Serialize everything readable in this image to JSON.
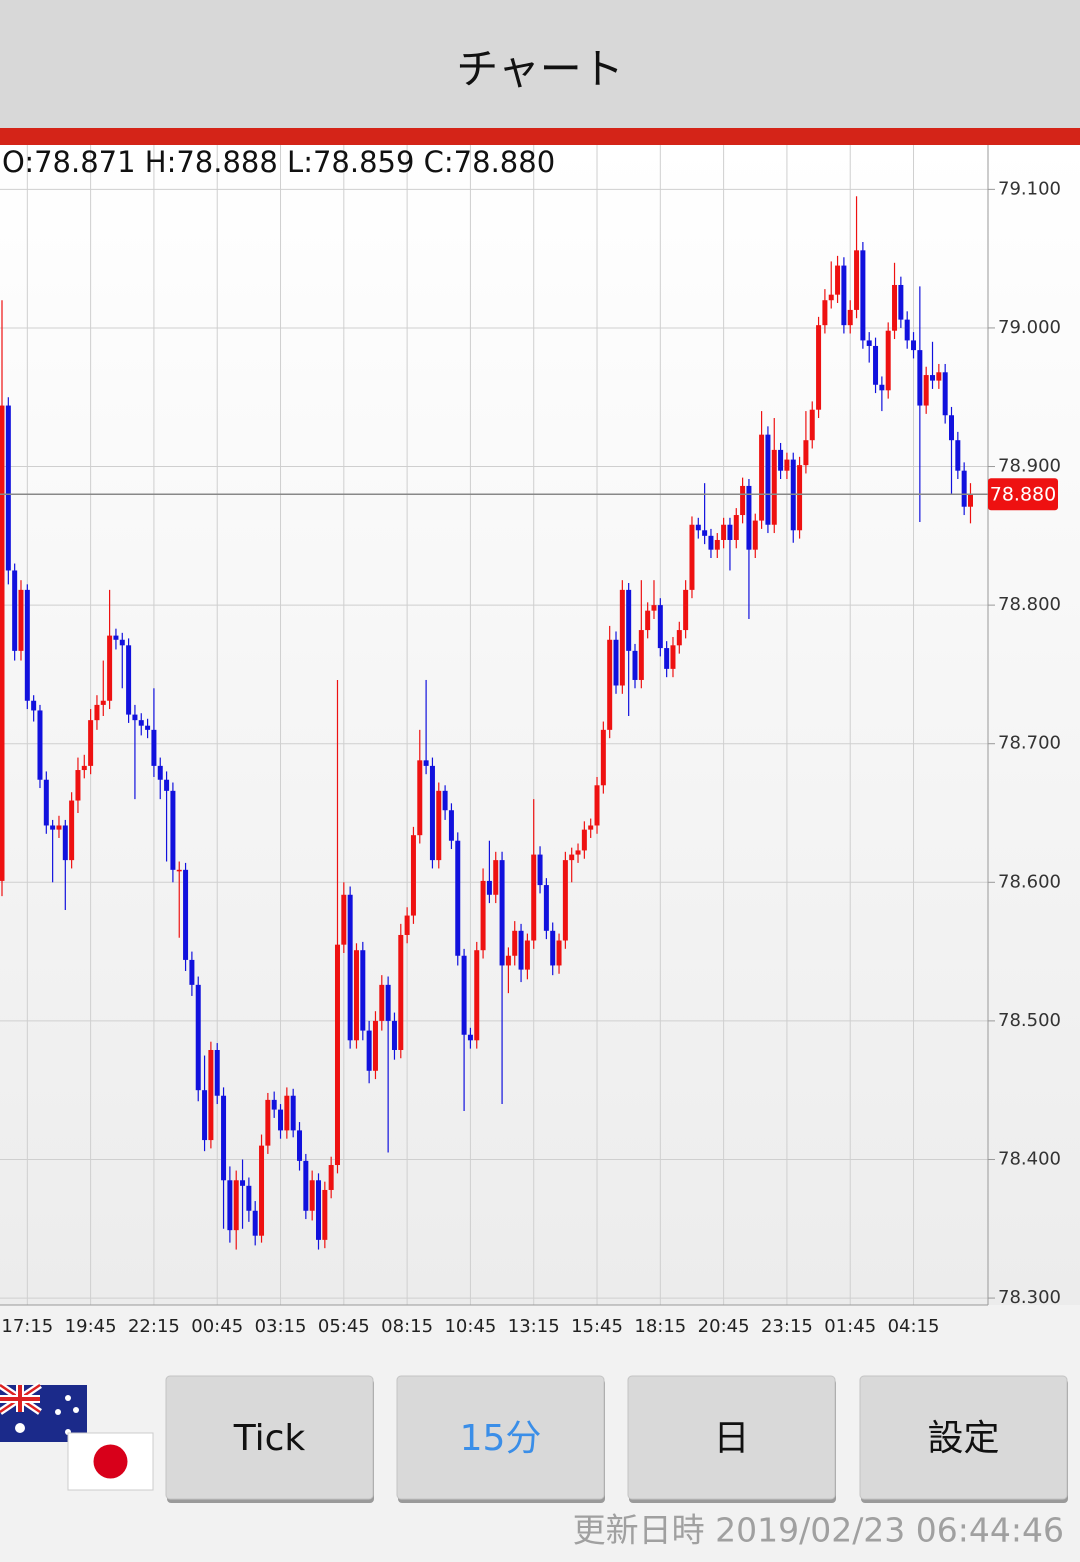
{
  "header": {
    "title": "チャート"
  },
  "chart_data": {
    "type": "candlestick",
    "ohlc_text": "O:78.871 H:78.888 L:78.859 C:78.880",
    "categories": [
      null,
      null,
      null,
      null,
      "17:15",
      null,
      null,
      null,
      null,
      null,
      null,
      null,
      null,
      null,
      "19:45",
      null,
      null,
      null,
      null,
      null,
      null,
      null,
      null,
      null,
      "22:15",
      null,
      null,
      null,
      null,
      null,
      null,
      null,
      null,
      null,
      "00:45",
      null,
      null,
      null,
      null,
      null,
      null,
      null,
      null,
      null,
      "03:15",
      null,
      null,
      null,
      null,
      null,
      null,
      null,
      null,
      null,
      "05:45",
      null,
      null,
      null,
      null,
      null,
      null,
      null,
      null,
      null,
      "08:15",
      null,
      null,
      null,
      null,
      null,
      null,
      null,
      null,
      null,
      "10:45",
      null,
      null,
      null,
      null,
      null,
      null,
      null,
      null,
      null,
      "13:15",
      null,
      null,
      null,
      null,
      null,
      null,
      null,
      null,
      null,
      "15:45",
      null,
      null,
      null,
      null,
      null,
      null,
      null,
      null,
      null,
      "18:15",
      null,
      null,
      null,
      null,
      null,
      null,
      null,
      null,
      null,
      "20:45",
      null,
      null,
      null,
      null,
      null,
      null,
      null,
      null,
      null,
      "23:15",
      null,
      null,
      null,
      null,
      null,
      null,
      null,
      null,
      null,
      "01:45",
      null,
      null,
      null,
      null,
      null,
      null,
      null,
      null,
      null,
      "04:15",
      null,
      null,
      null,
      null,
      null,
      null,
      null,
      null,
      null
    ],
    "open": [
      78.601,
      78.944,
      78.825,
      78.767,
      78.811,
      78.731,
      78.724,
      78.674,
      78.641,
      78.638,
      78.641,
      78.616,
      78.659,
      78.681,
      78.684,
      78.717,
      78.728,
      78.731,
      78.778,
      78.775,
      78.771,
      78.721,
      78.717,
      78.713,
      78.71,
      78.684,
      78.674,
      78.666,
      78.609,
      78.609,
      78.544,
      78.526,
      78.45,
      78.414,
      78.479,
      78.446,
      78.385,
      78.349,
      78.385,
      78.381,
      78.363,
      78.345,
      78.41,
      78.443,
      78.436,
      78.421,
      78.446,
      78.421,
      78.399,
      78.363,
      78.385,
      78.342,
      78.378,
      78.396,
      78.555,
      78.591,
      78.486,
      78.551,
      78.493,
      78.464,
      78.5,
      78.526,
      78.5,
      78.479,
      78.562,
      78.576,
      78.634,
      78.688,
      78.684,
      78.616,
      78.666,
      78.652,
      78.63,
      78.547,
      78.49,
      78.486,
      78.551,
      78.601,
      78.591,
      78.616,
      78.54,
      78.547,
      78.565,
      78.537,
      78.558,
      78.62,
      78.598,
      78.565,
      78.54,
      78.558,
      78.616,
      78.62,
      78.623,
      78.638,
      78.641,
      78.67,
      78.71,
      78.775,
      78.742,
      78.811,
      78.767,
      78.746,
      78.782,
      78.796,
      78.8,
      78.769,
      78.754,
      78.771,
      78.782,
      78.811,
      78.858,
      78.854,
      78.85,
      78.84,
      78.847,
      78.858,
      78.847,
      78.865,
      78.886,
      78.84,
      78.861,
      78.923,
      78.858,
      78.912,
      78.897,
      78.905,
      78.854,
      78.901,
      78.919,
      78.941,
      79.002,
      79.02,
      79.024,
      79.045,
      79.002,
      79.013,
      79.056,
      78.991,
      78.987,
      78.959,
      78.955,
      78.998,
      79.031,
      79.006,
      78.991,
      78.984,
      78.944,
      78.966,
      78.962,
      78.968,
      78.937,
      78.919,
      78.897,
      78.871
    ],
    "high": [
      79.02,
      78.95,
      78.83,
      78.818,
      78.815,
      78.735,
      78.728,
      78.68,
      78.645,
      78.648,
      78.645,
      78.665,
      78.69,
      78.692,
      78.725,
      78.735,
      78.76,
      78.811,
      78.783,
      78.78,
      78.776,
      78.728,
      78.722,
      78.718,
      78.74,
      78.69,
      78.68,
      78.672,
      78.615,
      78.614,
      78.55,
      78.532,
      78.475,
      78.485,
      78.484,
      78.452,
      78.395,
      78.392,
      78.4,
      78.387,
      78.37,
      78.418,
      78.448,
      78.449,
      78.44,
      78.452,
      78.451,
      78.427,
      78.404,
      78.392,
      78.39,
      78.384,
      78.402,
      78.746,
      78.6,
      78.597,
      78.556,
      78.557,
      78.5,
      78.507,
      78.533,
      78.532,
      78.506,
      78.57,
      78.582,
      78.64,
      78.71,
      78.746,
      78.69,
      78.672,
      78.67,
      78.657,
      78.636,
      78.552,
      78.495,
      78.557,
      78.61,
      78.63,
      78.622,
      78.622,
      78.553,
      78.572,
      78.57,
      78.563,
      78.66,
      78.626,
      78.603,
      78.571,
      78.563,
      78.622,
      78.625,
      78.628,
      78.644,
      78.646,
      78.676,
      78.716,
      78.785,
      78.781,
      78.818,
      78.816,
      78.772,
      78.818,
      78.802,
      78.818,
      78.805,
      78.774,
      78.777,
      78.788,
      78.818,
      78.864,
      78.863,
      78.888,
      78.855,
      78.852,
      78.863,
      78.863,
      78.87,
      78.892,
      78.891,
      78.866,
      78.94,
      78.929,
      78.935,
      78.917,
      78.91,
      78.91,
      78.907,
      78.94,
      78.947,
      79.008,
      79.028,
      79.048,
      79.052,
      79.051,
      79.02,
      79.095,
      79.062,
      78.997,
      78.993,
      78.965,
      79.004,
      79.047,
      79.037,
      79.012,
      78.997,
      79.03,
      78.972,
      78.99,
      78.974,
      78.974,
      78.943,
      78.925,
      78.903,
      78.888
    ],
    "low": [
      78.59,
      78.815,
      78.76,
      78.76,
      78.725,
      78.716,
      78.668,
      78.635,
      78.6,
      78.632,
      78.58,
      78.61,
      78.65,
      78.675,
      78.678,
      78.71,
      78.72,
      78.725,
      78.768,
      78.74,
      78.715,
      78.66,
      78.706,
      78.704,
      78.676,
      78.66,
      78.615,
      78.6,
      78.56,
      78.536,
      78.518,
      78.442,
      78.406,
      78.408,
      78.44,
      78.35,
      78.34,
      78.335,
      78.35,
      78.355,
      78.338,
      78.34,
      78.404,
      78.43,
      78.415,
      78.415,
      78.416,
      78.392,
      78.357,
      78.356,
      78.335,
      78.336,
      78.372,
      78.39,
      78.549,
      78.48,
      78.48,
      78.486,
      78.455,
      78.458,
      78.493,
      78.405,
      78.472,
      78.473,
      78.556,
      78.57,
      78.628,
      78.678,
      78.61,
      78.61,
      78.645,
      78.624,
      78.54,
      78.435,
      78.48,
      78.48,
      78.545,
      78.585,
      78.585,
      78.44,
      78.52,
      78.54,
      78.528,
      78.53,
      78.552,
      78.592,
      78.559,
      78.533,
      78.534,
      78.552,
      78.6,
      78.614,
      78.617,
      78.632,
      78.635,
      78.664,
      78.704,
      78.736,
      78.736,
      78.72,
      78.74,
      78.74,
      78.776,
      78.79,
      78.763,
      78.748,
      78.748,
      78.765,
      78.776,
      78.805,
      78.848,
      78.844,
      78.834,
      78.834,
      78.841,
      78.825,
      78.841,
      78.859,
      78.79,
      78.834,
      78.855,
      78.852,
      78.852,
      78.891,
      78.891,
      78.845,
      78.848,
      78.895,
      78.913,
      78.935,
      78.996,
      79.014,
      79.018,
      78.996,
      78.996,
      79.007,
      78.985,
      78.975,
      78.953,
      78.94,
      78.949,
      78.992,
      79.0,
      78.985,
      78.978,
      78.86,
      78.938,
      78.956,
      78.956,
      78.931,
      78.88,
      78.891,
      78.865,
      78.859
    ],
    "close": [
      78.944,
      78.825,
      78.767,
      78.811,
      78.731,
      78.724,
      78.674,
      78.641,
      78.638,
      78.641,
      78.616,
      78.659,
      78.681,
      78.684,
      78.717,
      78.728,
      78.731,
      78.778,
      78.775,
      78.771,
      78.721,
      78.717,
      78.713,
      78.71,
      78.684,
      78.674,
      78.666,
      78.609,
      78.609,
      78.544,
      78.526,
      78.45,
      78.414,
      78.479,
      78.446,
      78.385,
      78.349,
      78.385,
      78.381,
      78.363,
      78.345,
      78.41,
      78.443,
      78.436,
      78.421,
      78.446,
      78.421,
      78.399,
      78.363,
      78.385,
      78.342,
      78.378,
      78.396,
      78.555,
      78.591,
      78.486,
      78.551,
      78.493,
      78.464,
      78.5,
      78.526,
      78.5,
      78.479,
      78.562,
      78.576,
      78.634,
      78.688,
      78.684,
      78.616,
      78.666,
      78.652,
      78.63,
      78.547,
      78.49,
      78.486,
      78.551,
      78.601,
      78.591,
      78.616,
      78.54,
      78.547,
      78.565,
      78.537,
      78.558,
      78.62,
      78.598,
      78.565,
      78.54,
      78.558,
      78.616,
      78.62,
      78.623,
      78.638,
      78.641,
      78.67,
      78.71,
      78.775,
      78.742,
      78.811,
      78.767,
      78.746,
      78.782,
      78.796,
      78.8,
      78.769,
      78.754,
      78.771,
      78.782,
      78.811,
      78.858,
      78.854,
      78.85,
      78.84,
      78.847,
      78.858,
      78.847,
      78.865,
      78.886,
      78.84,
      78.861,
      78.923,
      78.858,
      78.912,
      78.897,
      78.905,
      78.854,
      78.901,
      78.919,
      78.941,
      79.002,
      79.02,
      79.024,
      79.045,
      79.002,
      79.013,
      79.056,
      78.991,
      78.987,
      78.959,
      78.955,
      78.998,
      79.031,
      79.006,
      78.991,
      78.984,
      78.944,
      78.966,
      78.962,
      78.968,
      78.937,
      78.919,
      78.897,
      78.871,
      78.88
    ],
    "up_color": "#ee1111",
    "down_color": "#1111dd",
    "ylim": [
      78.295,
      79.132
    ],
    "yticks": [
      {
        "value": 78.3,
        "label": "78.300"
      },
      {
        "value": 78.4,
        "label": "78.400"
      },
      {
        "value": 78.5,
        "label": "78.500"
      },
      {
        "value": 78.6,
        "label": "78.600"
      },
      {
        "value": 78.7,
        "label": "78.700"
      },
      {
        "value": 78.8,
        "label": "78.800"
      },
      {
        "value": 78.9,
        "label": "78.900"
      },
      {
        "value": 79.0,
        "label": "79.000"
      },
      {
        "value": 79.1,
        "label": "79.100"
      }
    ],
    "grid": true,
    "last_price": {
      "value": 78.88,
      "label": "78.880"
    },
    "last_price_color": "#ee1111"
  },
  "buttons": [
    "Tick",
    "15分",
    "日",
    "設定"
  ],
  "active_button": "15分",
  "footer": {
    "updated": "更新日時 2019/02/23 06:44:46"
  }
}
